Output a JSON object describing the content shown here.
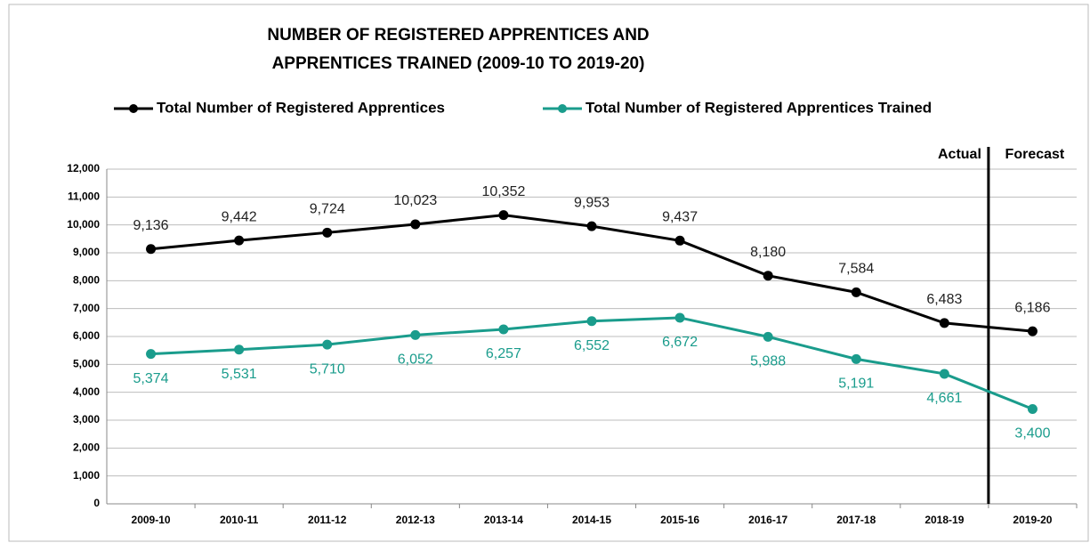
{
  "chart_data": {
    "type": "line",
    "title": "NUMBER OF REGISTERED APPRENTICES AND",
    "subtitle": "APPRENTICES TRAINED (2009-10 TO 2019-20)",
    "categories": [
      "2009-10",
      "2010-11",
      "2011-12",
      "2012-13",
      "2013-14",
      "2014-15",
      "2015-16",
      "2016-17",
      "2017-18",
      "2018-19",
      "2019-20"
    ],
    "series": [
      {
        "name": "Total Number of Registered Apprentices",
        "color": "#000000",
        "values": [
          9136,
          9442,
          9724,
          10023,
          10352,
          9953,
          9437,
          8180,
          7584,
          6483,
          6186
        ],
        "value_labels": [
          "9,136",
          "9,442",
          "9,724",
          "10,023",
          "10,352",
          "9,953",
          "9,437",
          "8,180",
          "7,584",
          "6,483",
          "6,186"
        ]
      },
      {
        "name": "Total Number of Registered Apprentices Trained",
        "color": "#1a9c8c",
        "values": [
          5374,
          5531,
          5710,
          6052,
          6257,
          6552,
          6672,
          5988,
          5191,
          4661,
          3400
        ],
        "value_labels": [
          "5,374",
          "5,531",
          "5,710",
          "6,052",
          "6,257",
          "6,552",
          "6,672",
          "5,988",
          "5,191",
          "4,661",
          "3,400"
        ]
      }
    ],
    "ylim": [
      0,
      12000
    ],
    "yticks": [
      0,
      {
        "value": 1000,
        "label": "1,000"
      },
      {
        "value": 2000,
        "label": "2,000"
      },
      {
        "value": 3000,
        "label": "3,000"
      },
      {
        "value": 4000,
        "label": "4,000"
      },
      {
        "value": 5000,
        "label": "5,000"
      },
      {
        "value": 6000,
        "label": "6,000"
      },
      {
        "value": 7000,
        "label": "7,000"
      },
      {
        "value": 8000,
        "label": "8,000"
      },
      {
        "value": 9000,
        "label": "9,000"
      },
      {
        "value": 10000,
        "label": "10,000"
      },
      {
        "value": 11000,
        "label": "11,000"
      },
      {
        "value": 12000,
        "label": "12,000"
      }
    ],
    "annotations": [
      "Actual",
      "Forecast"
    ],
    "grid": true
  }
}
